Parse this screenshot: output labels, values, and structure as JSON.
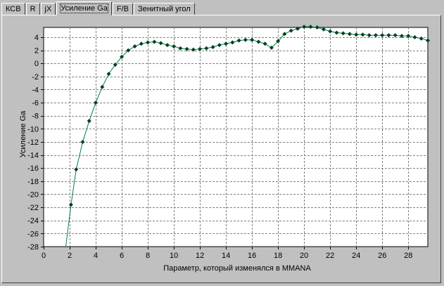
{
  "tabs": [
    {
      "label": "КСВ",
      "active": false
    },
    {
      "label": "R",
      "active": false
    },
    {
      "label": "jX",
      "active": false
    },
    {
      "label": "Усиление Ga",
      "active": true
    },
    {
      "label": "F/B",
      "active": false
    },
    {
      "label": "Зенитный угол",
      "active": false
    }
  ],
  "colors": {
    "plot_bg": "#ffffff",
    "line": "#008040",
    "marker": "#004020",
    "grid": "#808080"
  },
  "chart_data": {
    "type": "line",
    "title": "",
    "xlabel": "Параметр, который изменялся в MMANA",
    "ylabel": "Усиление Ga",
    "xlim": [
      0,
      29.5
    ],
    "ylim": [
      -28,
      5.5
    ],
    "x_ticks": [
      0,
      2,
      4,
      6,
      8,
      10,
      12,
      14,
      16,
      18,
      20,
      22,
      24,
      26,
      28
    ],
    "y_ticks": [
      4,
      2,
      0,
      -2,
      -4,
      -6,
      -8,
      -10,
      -12,
      -14,
      -16,
      -18,
      -20,
      -22,
      -24,
      -26,
      -28
    ],
    "grid": true,
    "line_start": {
      "x": 1.7,
      "y": -28
    },
    "series": [
      {
        "x": [
          2.1,
          2.5,
          3.0,
          3.5,
          4.0,
          4.5,
          5.0,
          5.5,
          6.0,
          6.5,
          7.0,
          7.5,
          8.0,
          8.5,
          9.0,
          9.5,
          10.0,
          10.5,
          11.0,
          11.5,
          12.0,
          12.5,
          13.0,
          13.5,
          14.0,
          14.5,
          15.0,
          15.5,
          16.0,
          16.5,
          17.0,
          17.5,
          18.0,
          18.5,
          19.0,
          19.5,
          20.0,
          20.5,
          21.0,
          21.5,
          22.0,
          22.5,
          23.0,
          23.5,
          24.0,
          24.5,
          25.0,
          25.5,
          26.0,
          26.5,
          27.0,
          27.5,
          28.0,
          28.5,
          29.0,
          29.5
        ],
        "y": [
          -21.6,
          -16.2,
          -12.0,
          -8.8,
          -6.0,
          -3.6,
          -1.6,
          -0.2,
          1.0,
          2.0,
          2.6,
          3.0,
          3.2,
          3.3,
          3.1,
          2.8,
          2.6,
          2.3,
          2.2,
          2.1,
          2.2,
          2.3,
          2.5,
          2.8,
          3.0,
          3.2,
          3.5,
          3.6,
          3.6,
          3.3,
          3.0,
          2.4,
          3.4,
          4.5,
          5.0,
          5.3,
          5.6,
          5.6,
          5.5,
          5.2,
          4.9,
          4.7,
          4.6,
          4.5,
          4.4,
          4.4,
          4.3,
          4.3,
          4.3,
          4.3,
          4.3,
          4.2,
          4.2,
          4.0,
          3.8,
          3.5
        ]
      }
    ]
  }
}
